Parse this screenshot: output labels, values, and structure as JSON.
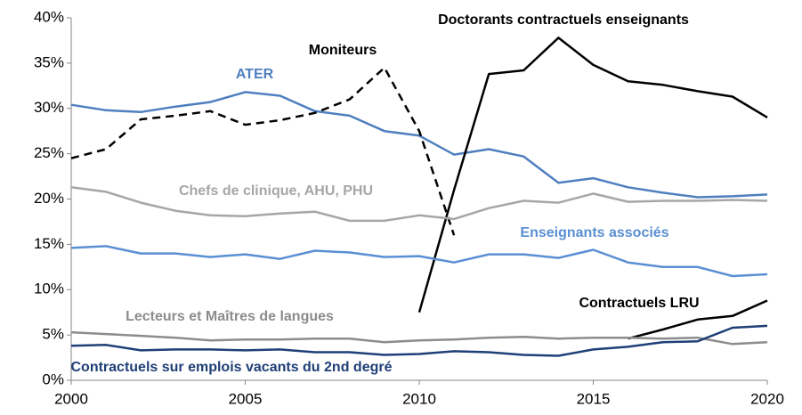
{
  "chart_data": {
    "type": "line",
    "x": [
      2000,
      2001,
      2002,
      2003,
      2004,
      2005,
      2006,
      2007,
      2008,
      2009,
      2010,
      2011,
      2012,
      2013,
      2014,
      2015,
      2016,
      2017,
      2018,
      2019,
      2020
    ],
    "xlim": [
      2000,
      2020
    ],
    "xticks": [
      2000,
      2005,
      2010,
      2015,
      2020
    ],
    "ylim": [
      0,
      40
    ],
    "yticks": [
      {
        "value": 0,
        "label": "0%"
      },
      {
        "value": 5,
        "label": "5%"
      },
      {
        "value": 10,
        "label": "10%"
      },
      {
        "value": 15,
        "label": "15%"
      },
      {
        "value": 20,
        "label": "20%"
      },
      {
        "value": 25,
        "label": "25%"
      },
      {
        "value": 30,
        "label": "30%"
      },
      {
        "value": 35,
        "label": "35%"
      },
      {
        "value": 40,
        "label": "40%"
      }
    ],
    "grid": false,
    "series": [
      {
        "name": "ATER",
        "color": "#4f7fbf",
        "values": [
          30.4,
          29.8,
          29.6,
          30.2,
          30.7,
          31.8,
          31.4,
          29.7,
          29.2,
          27.5,
          27.0,
          24.9,
          25.5,
          24.7,
          21.8,
          22.3,
          21.3,
          20.7,
          20.2,
          20.3,
          20.5
        ]
      },
      {
        "name": "Moniteurs",
        "color": "#000000",
        "dashed": true,
        "values": [
          24.5,
          25.5,
          28.8,
          29.2,
          29.7,
          28.2,
          28.7,
          29.5,
          31.0,
          34.5,
          27.5,
          16.0,
          null,
          null,
          null,
          null,
          null,
          null,
          null,
          null,
          null
        ]
      },
      {
        "name": "Doctorants contractuels enseignants",
        "color": "#000000",
        "values": [
          null,
          null,
          null,
          null,
          null,
          null,
          null,
          null,
          null,
          null,
          7.5,
          21.0,
          33.8,
          34.2,
          37.8,
          34.8,
          33.0,
          32.6,
          31.9,
          31.3,
          29.0
        ]
      },
      {
        "name": "Chefs de clinique, AHU, PHU",
        "color": "#a6a6a6",
        "values": [
          21.3,
          20.8,
          19.6,
          18.7,
          18.2,
          18.1,
          18.4,
          18.6,
          17.6,
          17.6,
          18.2,
          17.8,
          19.0,
          19.8,
          19.6,
          20.6,
          19.7,
          19.8,
          19.8,
          19.9,
          19.8
        ]
      },
      {
        "name": "Enseignants associés",
        "color": "#5b8fd3",
        "values": [
          14.6,
          14.8,
          14.0,
          14.0,
          13.6,
          13.9,
          13.4,
          14.3,
          14.1,
          13.6,
          13.7,
          13.0,
          13.9,
          13.9,
          13.5,
          14.4,
          13.0,
          12.5,
          12.5,
          11.5,
          11.7
        ]
      },
      {
        "name": "Contractuels LRU",
        "color": "#000000",
        "values": [
          null,
          null,
          null,
          null,
          null,
          null,
          null,
          null,
          null,
          null,
          null,
          null,
          null,
          null,
          null,
          null,
          4.6,
          5.6,
          6.7,
          7.1,
          8.8
        ]
      },
      {
        "name": "Lecteurs et Maîtres de langues",
        "color": "#8c8c8c",
        "values": [
          5.3,
          5.1,
          4.9,
          4.7,
          4.4,
          4.5,
          4.5,
          4.6,
          4.6,
          4.2,
          4.4,
          4.5,
          4.7,
          4.8,
          4.6,
          4.7,
          4.7,
          4.6,
          4.7,
          4.0,
          4.2
        ]
      },
      {
        "name": "Contractuels sur emplois vacants du 2nd degré",
        "color": "#1f3f77",
        "values": [
          3.8,
          3.9,
          3.3,
          3.4,
          3.4,
          3.3,
          3.4,
          3.1,
          3.1,
          2.8,
          2.9,
          3.2,
          3.1,
          2.8,
          2.7,
          3.4,
          3.7,
          4.2,
          4.3,
          5.8,
          6.0
        ]
      }
    ]
  }
}
